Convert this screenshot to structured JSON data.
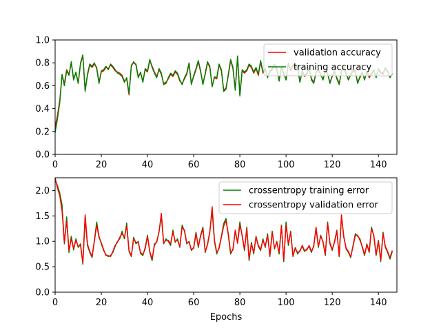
{
  "chart_data": [
    {
      "type": "line",
      "xlim": [
        0,
        148
      ],
      "ylim": [
        0.0,
        1.0
      ],
      "xticks": [
        "0",
        "20",
        "40",
        "60",
        "80",
        "100",
        "120",
        "140"
      ],
      "yticks": [
        "0.0",
        "0.2",
        "0.4",
        "0.6",
        "0.8",
        "1.0"
      ],
      "xlabel": "",
      "ylabel": "",
      "legend_position": "top-right",
      "series": [
        {
          "name": "validation accuracy",
          "color": "#ff0000",
          "values": [
            0.24,
            0.34,
            0.47,
            0.69,
            0.62,
            0.74,
            0.7,
            0.8,
            0.66,
            0.71,
            0.63,
            0.79,
            0.86,
            0.56,
            0.69,
            0.78,
            0.76,
            0.79,
            0.76,
            0.63,
            0.72,
            0.73,
            0.76,
            0.75,
            0.78,
            0.76,
            0.73,
            0.72,
            0.71,
            0.69,
            0.64,
            0.66,
            0.52,
            0.78,
            0.8,
            0.79,
            0.68,
            0.71,
            0.64,
            0.74,
            0.72,
            0.82,
            0.77,
            0.72,
            0.68,
            0.74,
            0.7,
            0.62,
            0.63,
            0.66,
            0.7,
            0.68,
            0.72,
            0.7,
            0.64,
            0.62,
            0.66,
            0.7,
            0.79,
            0.62,
            0.68,
            0.74,
            0.81,
            0.72,
            0.62,
            0.7,
            0.8,
            0.76,
            0.6,
            0.67,
            0.66,
            0.78,
            0.73,
            0.56,
            0.58,
            0.69,
            0.82,
            0.75,
            0.57,
            0.85,
            0.52,
            0.73,
            0.71,
            0.73,
            0.78,
            0.76,
            0.71,
            0.75,
            0.69,
            0.81,
            0.71,
            0.74,
            0.68,
            0.72,
            0.74,
            0.78,
            0.74,
            0.65,
            0.76,
            0.7,
            0.66,
            0.79,
            0.73,
            0.77,
            0.78,
            0.75,
            0.64,
            0.72,
            0.68,
            0.7,
            0.75,
            0.66,
            0.63,
            0.71,
            0.74,
            0.69,
            0.66,
            0.72,
            0.7,
            0.63,
            0.68,
            0.72,
            0.67,
            0.62,
            0.72,
            0.76,
            0.7,
            0.66,
            0.69,
            0.73,
            0.72,
            0.63,
            0.67,
            0.71,
            0.66,
            0.72,
            0.67,
            0.7,
            0.73,
            0.68,
            0.74,
            0.71,
            0.7,
            0.75,
            0.72,
            0.68,
            0.7
          ]
        },
        {
          "name": "training accuracy",
          "color": "#008000",
          "values": [
            0.19,
            0.31,
            0.45,
            0.7,
            0.6,
            0.73,
            0.69,
            0.81,
            0.65,
            0.72,
            0.62,
            0.8,
            0.87,
            0.55,
            0.7,
            0.79,
            0.77,
            0.8,
            0.75,
            0.62,
            0.73,
            0.74,
            0.77,
            0.74,
            0.79,
            0.77,
            0.74,
            0.71,
            0.7,
            0.68,
            0.63,
            0.67,
            0.53,
            0.77,
            0.81,
            0.78,
            0.67,
            0.72,
            0.63,
            0.75,
            0.73,
            0.83,
            0.76,
            0.71,
            0.67,
            0.75,
            0.71,
            0.61,
            0.62,
            0.67,
            0.71,
            0.69,
            0.73,
            0.71,
            0.65,
            0.61,
            0.67,
            0.71,
            0.8,
            0.61,
            0.69,
            0.75,
            0.82,
            0.73,
            0.61,
            0.71,
            0.81,
            0.77,
            0.59,
            0.68,
            0.67,
            0.79,
            0.74,
            0.55,
            0.57,
            0.7,
            0.83,
            0.76,
            0.56,
            0.86,
            0.51,
            0.74,
            0.72,
            0.74,
            0.79,
            0.77,
            0.72,
            0.76,
            0.7,
            0.82,
            0.72,
            0.75,
            0.67,
            0.73,
            0.75,
            0.79,
            0.75,
            0.64,
            0.77,
            0.71,
            0.65,
            0.8,
            0.74,
            0.78,
            0.79,
            0.76,
            0.63,
            0.73,
            0.69,
            0.71,
            0.76,
            0.65,
            0.62,
            0.72,
            0.75,
            0.7,
            0.65,
            0.73,
            0.71,
            0.62,
            0.69,
            0.73,
            0.66,
            0.61,
            0.73,
            0.77,
            0.71,
            0.65,
            0.7,
            0.74,
            0.73,
            0.62,
            0.68,
            0.72,
            0.65,
            0.73,
            0.68,
            0.71,
            0.74,
            0.67,
            0.75,
            0.72,
            0.71,
            0.76,
            0.73,
            0.67,
            0.71
          ]
        }
      ]
    },
    {
      "type": "line",
      "xlim": [
        0,
        148
      ],
      "ylim": [
        0.0,
        2.25
      ],
      "xticks": [
        "0",
        "20",
        "40",
        "60",
        "80",
        "100",
        "120",
        "140"
      ],
      "yticks": [
        "0.0",
        "0.5",
        "1.0",
        "1.5",
        "2.0"
      ],
      "xlabel": "Epochs",
      "ylabel": "",
      "legend_position": "top-right",
      "series": [
        {
          "name": "crossentropy training error",
          "color": "#008000",
          "values": [
            2.2,
            2.1,
            1.95,
            1.72,
            0.95,
            1.48,
            0.78,
            1.1,
            0.83,
            1.05,
            0.88,
            0.95,
            0.55,
            1.45,
            0.92,
            0.78,
            0.68,
            1.02,
            1.38,
            1.1,
            0.95,
            0.82,
            0.74,
            0.7,
            0.72,
            0.78,
            0.9,
            1.0,
            1.05,
            1.2,
            1.05,
            1.36,
            0.8,
            0.7,
            1.08,
            0.95,
            1.0,
            0.76,
            0.72,
            0.88,
            1.12,
            0.78,
            0.62,
            0.95,
            0.98,
            1.2,
            1.5,
            0.95,
            1.05,
            1.0,
            0.92,
            1.22,
            0.98,
            1.05,
            0.88,
            1.32,
            1.2,
            0.95,
            1.0,
            0.82,
            0.88,
            1.18,
            0.88,
            1.12,
            1.28,
            0.78,
            0.95,
            1.2,
            1.6,
            1.0,
            0.75,
            0.88,
            1.1,
            1.35,
            1.45,
            1.12,
            0.75,
            0.85,
            1.2,
            0.98,
            1.38,
            1.1,
            0.82,
            1.28,
            0.62,
            0.98,
            0.75,
            1.1,
            0.9,
            0.82,
            1.05,
            0.88,
            1.15,
            0.7,
            1.2,
            0.85,
            1.0,
            0.75,
            1.32,
            0.6,
            1.38,
            0.92,
            1.2,
            0.7,
            0.88,
            0.75,
            0.82,
            0.9,
            0.8,
            0.85,
            0.9,
            0.78,
            0.92,
            1.25,
            0.88,
            1.12,
            0.98,
            0.72,
            1.38,
            0.95,
            0.82,
            1.0,
            1.22,
            0.7,
            1.48,
            1.1,
            0.85,
            0.78,
            0.68,
            0.92,
            1.15,
            1.1,
            1.05,
            0.88,
            0.72,
            0.95,
            0.78,
            1.28,
            1.1,
            0.72,
            1.02,
            0.6,
            1.18,
            0.88,
            0.78,
            0.65,
            0.8
          ]
        },
        {
          "name": "crossentropy validation error",
          "color": "#ff0000",
          "values": [
            2.25,
            2.05,
            1.9,
            1.6,
            0.98,
            1.4,
            0.82,
            1.05,
            0.86,
            1.02,
            0.9,
            0.92,
            0.58,
            1.52,
            0.95,
            0.8,
            0.7,
            1.0,
            1.32,
            1.08,
            0.97,
            0.84,
            0.72,
            0.72,
            0.7,
            0.8,
            0.92,
            0.98,
            1.08,
            1.15,
            1.08,
            1.3,
            0.82,
            0.72,
            1.05,
            0.98,
            0.98,
            0.78,
            0.74,
            0.85,
            1.1,
            0.8,
            0.65,
            0.92,
            1.0,
            1.18,
            1.55,
            0.97,
            1.02,
            1.02,
            0.95,
            1.18,
            1.0,
            1.02,
            0.9,
            1.28,
            1.22,
            0.97,
            0.98,
            0.84,
            0.86,
            1.15,
            0.9,
            1.1,
            1.25,
            0.8,
            0.93,
            1.18,
            1.68,
            1.02,
            0.78,
            0.86,
            1.08,
            1.3,
            1.4,
            1.15,
            0.78,
            0.83,
            1.22,
            0.96,
            1.32,
            1.12,
            0.84,
            1.25,
            0.65,
            0.95,
            0.78,
            1.08,
            0.92,
            0.84,
            1.02,
            0.9,
            1.12,
            0.72,
            1.18,
            0.87,
            0.98,
            0.78,
            1.3,
            0.63,
            1.32,
            0.95,
            1.18,
            0.72,
            0.86,
            0.78,
            0.8,
            0.92,
            0.82,
            0.83,
            0.92,
            0.8,
            0.9,
            1.28,
            0.9,
            1.1,
            1.0,
            0.74,
            1.35,
            0.97,
            0.84,
            0.98,
            1.2,
            0.72,
            1.52,
            1.08,
            0.87,
            0.8,
            0.7,
            0.9,
            1.12,
            1.12,
            1.02,
            0.9,
            0.74,
            0.93,
            0.8,
            1.25,
            1.12,
            0.74,
            1.0,
            0.63,
            1.15,
            0.9,
            0.8,
            0.68,
            0.82
          ]
        }
      ]
    }
  ]
}
